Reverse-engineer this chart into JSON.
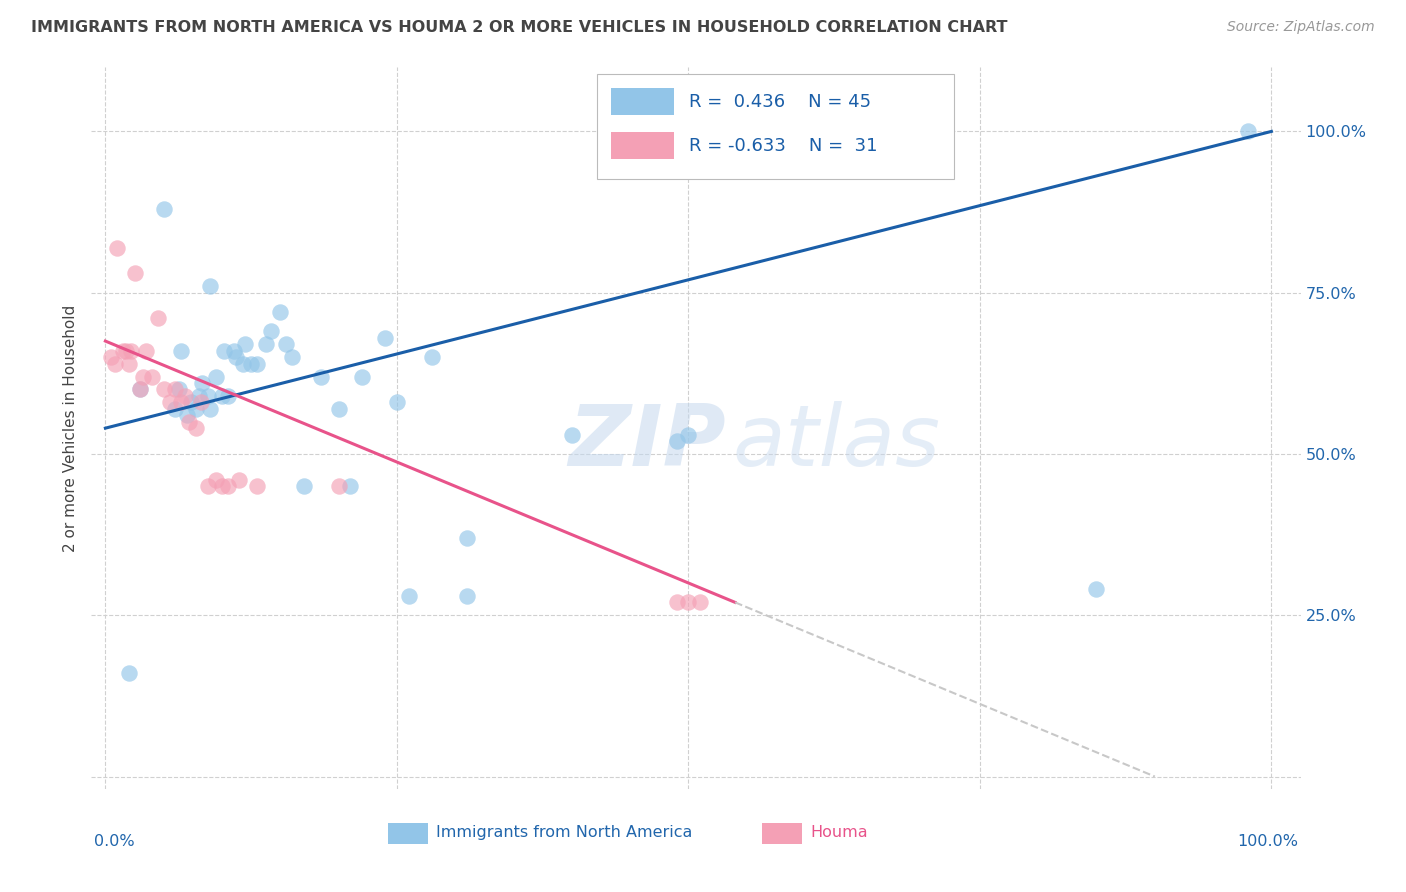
{
  "title": "IMMIGRANTS FROM NORTH AMERICA VS HOUMA 2 OR MORE VEHICLES IN HOUSEHOLD CORRELATION CHART",
  "source": "Source: ZipAtlas.com",
  "ylabel": "2 or more Vehicles in Household",
  "legend_label1": "Immigrants from North America",
  "legend_label2": "Houma",
  "R1": 0.436,
  "N1": 45,
  "R2": -0.633,
  "N2": 31,
  "blue_scatter_x": [
    0.02,
    0.03,
    0.05,
    0.06,
    0.063,
    0.065,
    0.07,
    0.073,
    0.078,
    0.08,
    0.083,
    0.088,
    0.09,
    0.095,
    0.1,
    0.102,
    0.105,
    0.11,
    0.112,
    0.118,
    0.12,
    0.125,
    0.13,
    0.138,
    0.142,
    0.15,
    0.155,
    0.16,
    0.17,
    0.185,
    0.2,
    0.21,
    0.22,
    0.24,
    0.25,
    0.26,
    0.28,
    0.31,
    0.4,
    0.49,
    0.5,
    0.31,
    0.85,
    0.09,
    0.98
  ],
  "blue_scatter_y": [
    0.16,
    0.6,
    0.88,
    0.57,
    0.6,
    0.66,
    0.56,
    0.58,
    0.57,
    0.59,
    0.61,
    0.59,
    0.57,
    0.62,
    0.59,
    0.66,
    0.59,
    0.66,
    0.65,
    0.64,
    0.67,
    0.64,
    0.64,
    0.67,
    0.69,
    0.72,
    0.67,
    0.65,
    0.45,
    0.62,
    0.57,
    0.45,
    0.62,
    0.68,
    0.58,
    0.28,
    0.65,
    0.28,
    0.53,
    0.52,
    0.53,
    0.37,
    0.29,
    0.76,
    1.0
  ],
  "pink_scatter_x": [
    0.005,
    0.008,
    0.01,
    0.015,
    0.018,
    0.02,
    0.022,
    0.025,
    0.03,
    0.032,
    0.035,
    0.04,
    0.045,
    0.05,
    0.055,
    0.06,
    0.065,
    0.068,
    0.072,
    0.078,
    0.082,
    0.088,
    0.095,
    0.1,
    0.105,
    0.115,
    0.13,
    0.2,
    0.49,
    0.5,
    0.51
  ],
  "pink_scatter_y": [
    0.65,
    0.64,
    0.82,
    0.66,
    0.66,
    0.64,
    0.66,
    0.78,
    0.6,
    0.62,
    0.66,
    0.62,
    0.71,
    0.6,
    0.58,
    0.6,
    0.58,
    0.59,
    0.55,
    0.54,
    0.58,
    0.45,
    0.46,
    0.45,
    0.45,
    0.46,
    0.45,
    0.45,
    0.27,
    0.27,
    0.27
  ],
  "blue_color": "#92C5E8",
  "pink_color": "#F4A0B5",
  "blue_line_color": "#1A5EA8",
  "pink_line_color": "#E8538A",
  "dashed_color": "#C8C8C8",
  "background_color": "#FFFFFF",
  "grid_color": "#D0D0D0",
  "title_color": "#444444",
  "axis_label_color": "#2166AC",
  "source_color": "#999999",
  "ytick_values": [
    0.0,
    0.25,
    0.5,
    0.75,
    1.0
  ],
  "ytick_labels": [
    "",
    "25.0%",
    "50.0%",
    "75.0%",
    "100.0%"
  ],
  "xtick_values": [
    0.0,
    0.25,
    0.5,
    0.75,
    1.0
  ],
  "blue_line_start_x": 0.0,
  "blue_line_start_y": 0.54,
  "blue_line_end_x": 1.0,
  "blue_line_end_y": 1.0,
  "pink_line_start_x": 0.0,
  "pink_line_start_y": 0.675,
  "pink_line_solid_end_x": 0.54,
  "pink_line_solid_end_y": 0.27,
  "pink_line_dash_end_x": 0.9,
  "pink_line_dash_end_y": 0.0
}
